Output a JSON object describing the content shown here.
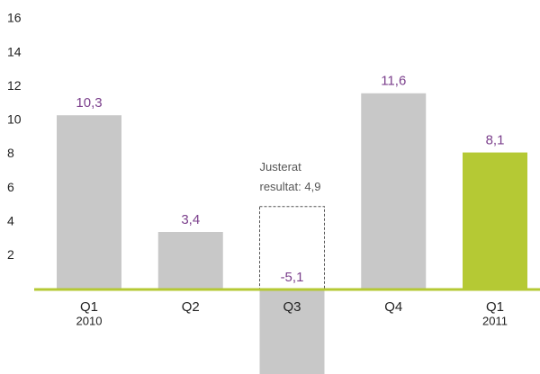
{
  "chart_data": {
    "type": "bar",
    "categories": [
      "Q1",
      "Q2",
      "Q3",
      "Q4",
      "Q1"
    ],
    "category_sublabels": [
      "2010",
      null,
      null,
      null,
      "2011"
    ],
    "values": [
      10.3,
      3.4,
      -5.1,
      11.6,
      8.1
    ],
    "value_labels": [
      "10,3",
      "3,4",
      "-5,1",
      "11,6",
      "8,1"
    ],
    "colors": [
      "#c8c8c8",
      "#c8c8c8",
      "#c8c8c8",
      "#c8c8c8",
      "#b5c934"
    ],
    "axis_color": "#b5c934",
    "label_color": "#7b3f8c",
    "ylim": [
      -5,
      16
    ],
    "yticks": [
      2,
      4,
      6,
      8,
      10,
      12,
      14,
      16
    ],
    "grid": false,
    "annotation": {
      "category": "Q3",
      "lines": [
        "Justerat",
        "resultat: 4,9"
      ],
      "value": 4.9
    }
  }
}
